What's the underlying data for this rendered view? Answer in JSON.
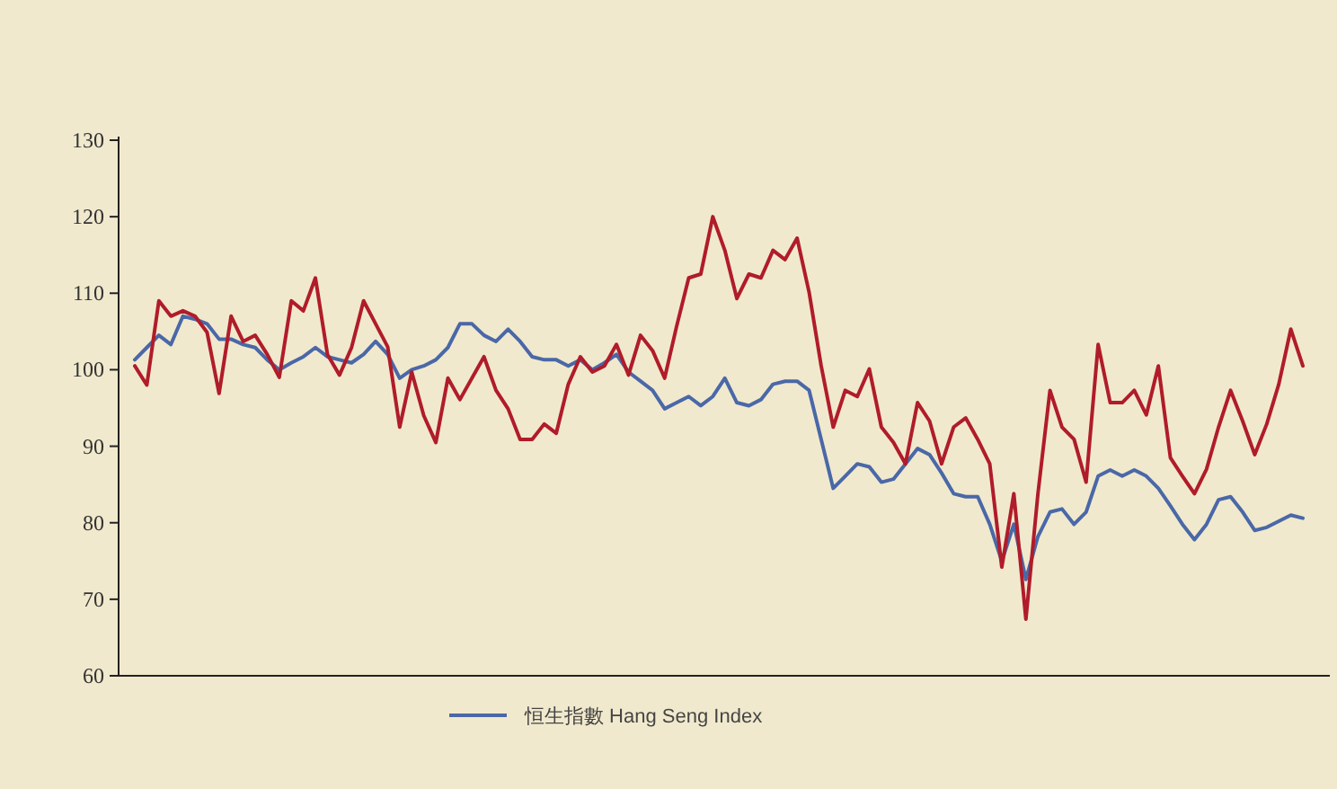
{
  "chart_data": {
    "type": "line",
    "categories": [
      null,
      null,
      null,
      null,
      null,
      null,
      null,
      null,
      null,
      null,
      null,
      null,
      null,
      null,
      null,
      null,
      null,
      null,
      null,
      null,
      null,
      null,
      null,
      null,
      null,
      null,
      null,
      null,
      null,
      null,
      null,
      null,
      null,
      null,
      null,
      null,
      null,
      null,
      null,
      null,
      null,
      null,
      null,
      null,
      null,
      null,
      null,
      null,
      null,
      null,
      null,
      null,
      null,
      null,
      null,
      null,
      null,
      null,
      null,
      null,
      null,
      null,
      null,
      null,
      null,
      null,
      null,
      null,
      null,
      null,
      null,
      null,
      null,
      null,
      null,
      null,
      null,
      null,
      null,
      null,
      null,
      null,
      null,
      null,
      null,
      null,
      null,
      null,
      null,
      null,
      null,
      null,
      null,
      null,
      null,
      null,
      null,
      null
    ],
    "series": [
      {
        "name": "恒生指數 Hang Seng Index",
        "color": "#4a68a8",
        "values": [
          101.3,
          102.9,
          104.5,
          103.3,
          107,
          106.6,
          106,
          104,
          104,
          103.3,
          102.9,
          101.3,
          100,
          100.9,
          101.7,
          102.9,
          101.7,
          101.3,
          100.9,
          102,
          103.7,
          102,
          98.9,
          100,
          100.5,
          101.3,
          102.9,
          106,
          106,
          104.5,
          103.7,
          105.3,
          103.7,
          101.7,
          101.3,
          101.3,
          100.5,
          101.3,
          100,
          100.9,
          102,
          99.7,
          98.5,
          97.3,
          94.9,
          95.7,
          96.5,
          95.3,
          96.5,
          98.9,
          95.7,
          95.3,
          96.1,
          98.1,
          98.5,
          98.5,
          97.3,
          90.9,
          84.5,
          86.1,
          87.7,
          87.3,
          85.3,
          85.7,
          87.7,
          89.7,
          88.9,
          86.5,
          83.8,
          83.4,
          83.4,
          79.8,
          75,
          79.8,
          72.6,
          78.2,
          81.4,
          81.8,
          79.8,
          81.4,
          86.1,
          86.9,
          86.1,
          86.9,
          86.1,
          84.5,
          82.2,
          79.8,
          77.8,
          79.8,
          83,
          83.4,
          81.4,
          79,
          79.4,
          80.2,
          81,
          80.6
        ]
      },
      {
        "color": "#b01c2a",
        "values": [
          100.5,
          98,
          109,
          107,
          107.7,
          107,
          104.9,
          96.9,
          107,
          103.7,
          104.5,
          102,
          99,
          109,
          107.7,
          112,
          102,
          99.3,
          102.9,
          109,
          106,
          103,
          92.5,
          99.7,
          94,
          90.5,
          98.9,
          96.1,
          98.9,
          101.7,
          97.3,
          94.9,
          90.9,
          90.9,
          92.9,
          91.7,
          98.1,
          101.7,
          99.7,
          100.5,
          103.3,
          99.3,
          104.5,
          102.5,
          98.9,
          105.7,
          112,
          112.5,
          120,
          115.6,
          109.3,
          112.5,
          112,
          115.6,
          114.4,
          117.2,
          110.1,
          100.5,
          92.5,
          97.3,
          96.5,
          100.1,
          92.5,
          90.5,
          87.7,
          95.7,
          93.3,
          87.7,
          92.5,
          93.7,
          90.9,
          87.7,
          74.2,
          83.8,
          67.4,
          83.8,
          97.3,
          92.5,
          90.9,
          85.3,
          103.3,
          95.7,
          95.7,
          97.3,
          94.1,
          100.5,
          88.5,
          86.1,
          83.8,
          87,
          92.5,
          97.3,
          93.3,
          88.9,
          92.9,
          98.1,
          105.3,
          100.5
        ]
      }
    ],
    "ylim": [
      60,
      130
    ],
    "yticks": [
      60,
      70,
      80,
      90,
      100,
      110,
      120,
      130
    ],
    "grid": false,
    "legend": "bottom",
    "marker": "none",
    "line_style": "solid",
    "tick_labels": "y"
  }
}
